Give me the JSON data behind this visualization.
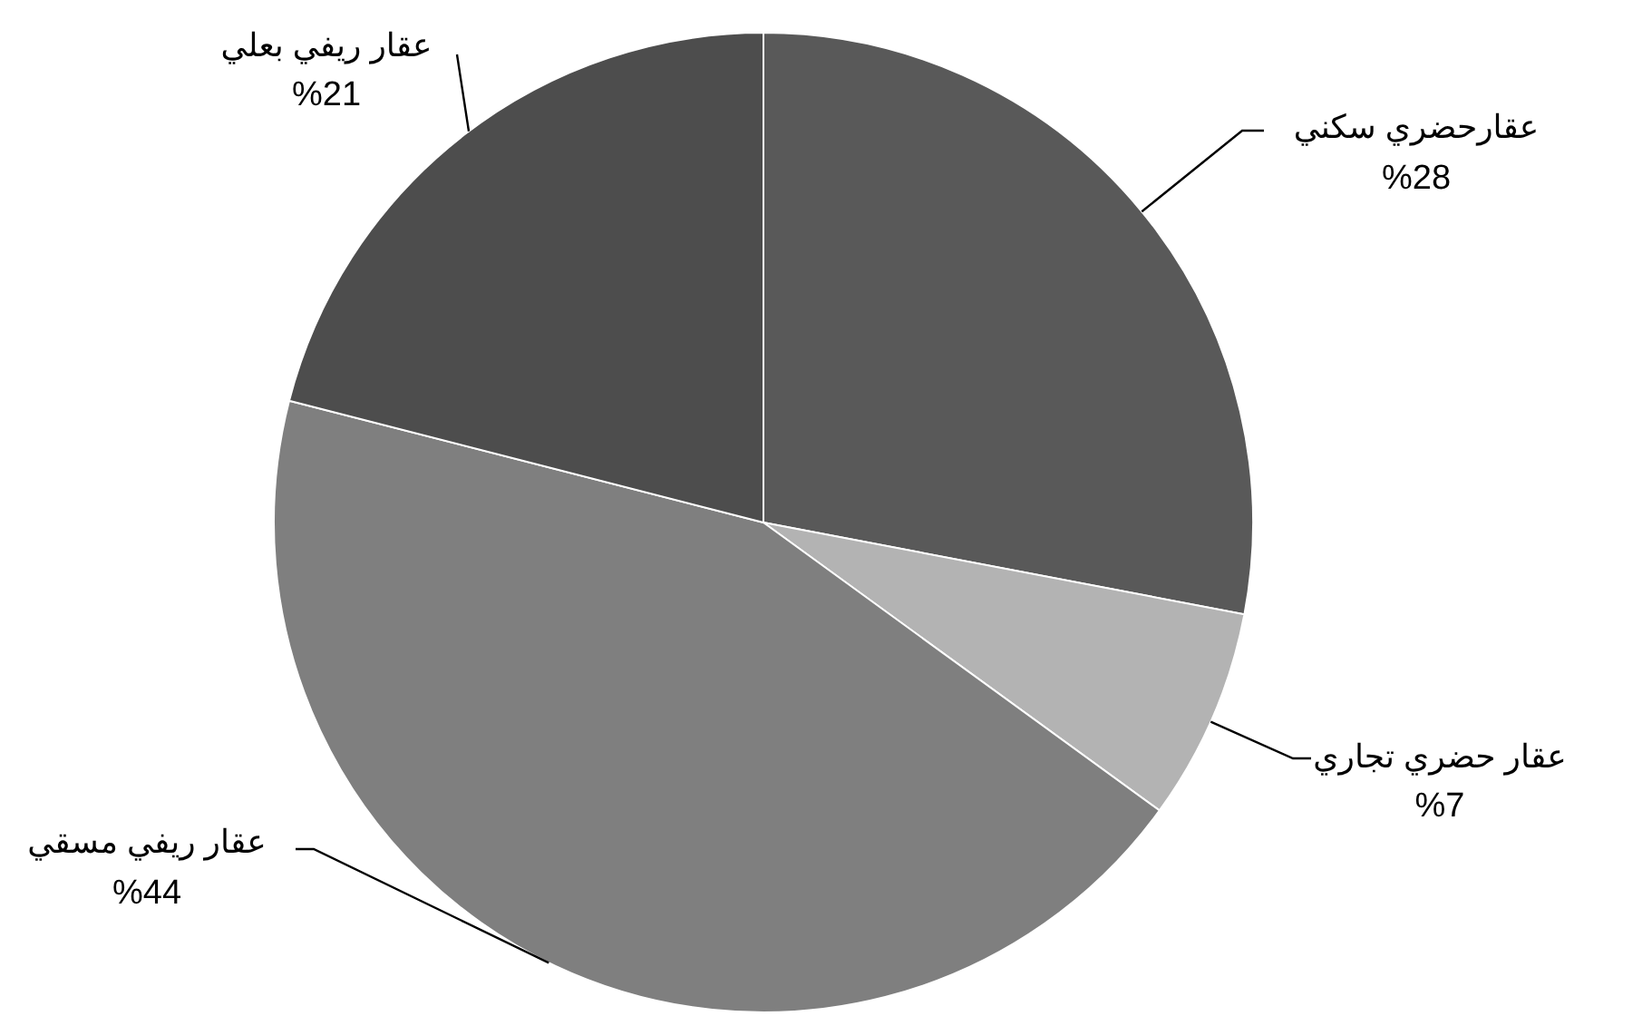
{
  "chart_data": {
    "type": "pie",
    "categories": [
      "عقارحضري سكني",
      "عقار حضري  تجاري",
      "عقار ريفي مسقي",
      "عقار ريفي بعلي"
    ],
    "values": [
      28,
      7,
      44,
      21
    ],
    "value_labels": [
      "%28",
      "%7",
      "%44",
      "%21"
    ],
    "colors": [
      "#595959",
      "#b3b3b3",
      "#7f7f7f",
      "#4d4d4d"
    ]
  }
}
